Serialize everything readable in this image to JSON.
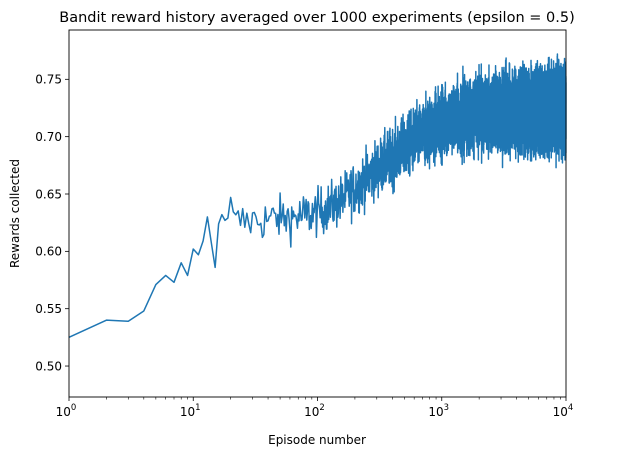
{
  "chart_data": {
    "type": "line",
    "title": "Bandit reward history averaged over 1000 experiments (epsilon = 0.5)",
    "xlabel": "Episode number",
    "ylabel": "Rewards collected",
    "xscale": "log",
    "xlim": [
      1,
      10000
    ],
    "ylim": [
      0.473,
      0.793
    ],
    "grid": false,
    "color": "#1f77b4",
    "x_ticks": [
      {
        "value": 1,
        "base": "10",
        "exp": "0"
      },
      {
        "value": 10,
        "base": "10",
        "exp": "1"
      },
      {
        "value": 100,
        "base": "10",
        "exp": "2"
      },
      {
        "value": 1000,
        "base": "10",
        "exp": "3"
      },
      {
        "value": 10000,
        "base": "10",
        "exp": "4"
      }
    ],
    "y_ticks": [
      {
        "value": 0.5,
        "label": "0.50"
      },
      {
        "value": 0.55,
        "label": "0.55"
      },
      {
        "value": 0.6,
        "label": "0.60"
      },
      {
        "value": 0.65,
        "label": "0.65"
      },
      {
        "value": 0.7,
        "label": "0.70"
      },
      {
        "value": 0.75,
        "label": "0.75"
      }
    ],
    "series": [
      {
        "x": [
          1,
          2,
          3,
          4,
          5,
          6,
          7,
          8,
          9,
          10,
          11,
          12,
          13,
          14,
          15,
          16,
          17,
          18,
          19,
          20
        ],
        "y": [
          0.525,
          0.54,
          0.539,
          0.548,
          0.571,
          0.579,
          0.573,
          0.59,
          0.579,
          0.602,
          0.597,
          0.609,
          0.63,
          0.607,
          0.586,
          0.624,
          0.632,
          0.627,
          0.629,
          0.647
        ]
      }
    ],
    "trend": [
      [
        20,
        0.625
      ],
      [
        40,
        0.628
      ],
      [
        70,
        0.63
      ],
      [
        100,
        0.634
      ],
      [
        150,
        0.643
      ],
      [
        200,
        0.655
      ],
      [
        300,
        0.672
      ],
      [
        500,
        0.69
      ],
      [
        800,
        0.706
      ],
      [
        1000,
        0.713
      ],
      [
        2000,
        0.719
      ],
      [
        4000,
        0.722
      ],
      [
        10000,
        0.723
      ]
    ],
    "noise": [
      [
        20,
        0.018
      ],
      [
        100,
        0.02
      ],
      [
        300,
        0.024
      ],
      [
        1000,
        0.03
      ],
      [
        10000,
        0.033
      ]
    ]
  }
}
